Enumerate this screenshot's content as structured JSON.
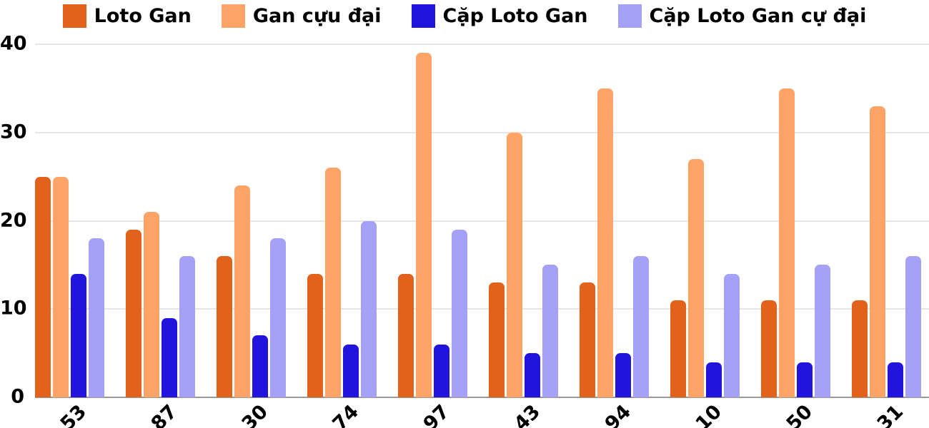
{
  "chart_data": {
    "type": "bar",
    "title": "",
    "xlabel": "",
    "ylabel": "",
    "categories": [
      "53",
      "87",
      "30",
      "74",
      "97",
      "43",
      "94",
      "10",
      "50",
      "31"
    ],
    "series": [
      {
        "name": "Loto Gan",
        "color": "#e2621b",
        "values": [
          25,
          19,
          16,
          14,
          14,
          13,
          13,
          11,
          11,
          11
        ]
      },
      {
        "name": "Gan cựu đại",
        "color": "#ffa366",
        "values": [
          25,
          21,
          24,
          26,
          39,
          30,
          35,
          27,
          35,
          33
        ]
      },
      {
        "name": "Cặp Loto Gan",
        "color": "#2213dd",
        "values": [
          14,
          9,
          7,
          6,
          6,
          5,
          5,
          4,
          4,
          4
        ]
      },
      {
        "name": "Cặp Loto Gan cự đại",
        "color": "#a5a1f8",
        "values": [
          18,
          16,
          18,
          20,
          19,
          15,
          16,
          14,
          15,
          16
        ]
      }
    ],
    "ylim": [
      0,
      40
    ],
    "yticks": [
      0,
      10,
      20,
      30,
      40
    ],
    "grid": "horizontal",
    "legend_position": "top",
    "x_label_rotation_deg": 45
  },
  "colors": {
    "background": "#ffffff",
    "gridline": "#e6e6e6",
    "axis_baseline": "#999999",
    "text": "#000000"
  }
}
